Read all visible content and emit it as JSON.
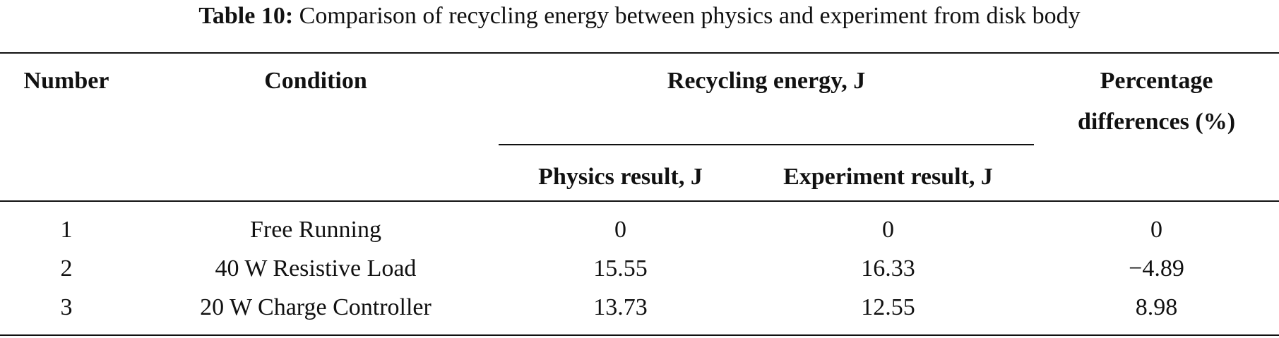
{
  "caption": {
    "label": "Table 10:",
    "text": "Comparison of recycling energy between physics and experiment from disk body"
  },
  "table": {
    "headers": {
      "number": "Number",
      "condition": "Condition",
      "recycling_energy": "Recycling energy, J",
      "physics_result": "Physics result, J",
      "experiment_result": "Experiment result, J",
      "percentage_line1": "Percentage",
      "percentage_line2": "differences (%)"
    },
    "rows": [
      {
        "number": "1",
        "condition": "Free Running",
        "physics": "0",
        "experiment": "0",
        "percentage": "0"
      },
      {
        "number": "2",
        "condition": "40 W Resistive Load",
        "physics": "15.55",
        "experiment": "16.33",
        "percentage": "−4.89"
      },
      {
        "number": "3",
        "condition": "20 W Charge Controller",
        "physics": "13.73",
        "experiment": "12.55",
        "percentage": "8.98"
      }
    ]
  }
}
